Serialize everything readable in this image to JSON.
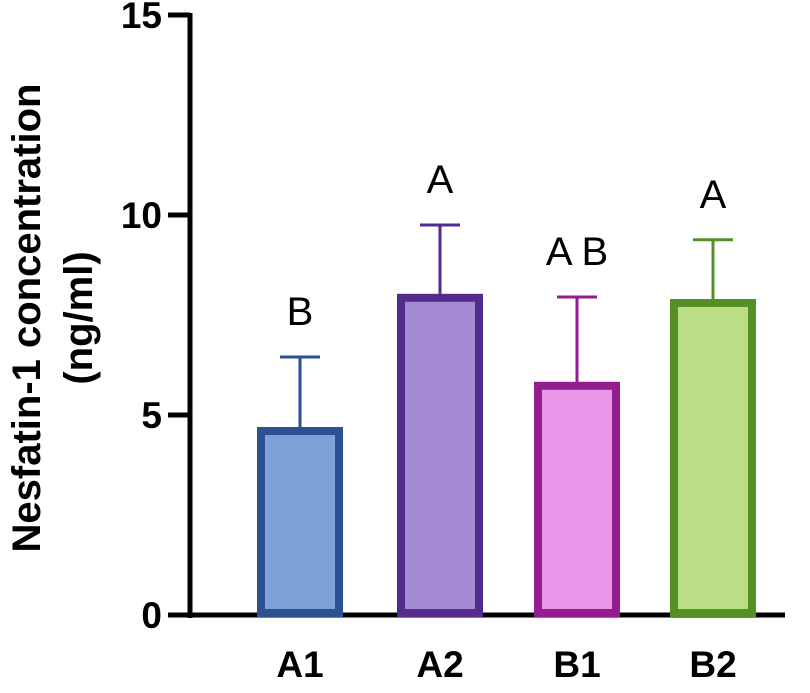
{
  "chart_data": {
    "type": "bar",
    "title": "",
    "xlabel": "",
    "ylabel": "Nesfatin-1 concentration\n(ng/ml)",
    "ylabel_lines": [
      "Nesfatin-1 concentration",
      "(ng/ml)"
    ],
    "ylim": [
      0,
      15
    ],
    "yticks": [
      0,
      5,
      10,
      15
    ],
    "grid": false,
    "categories": [
      "A1",
      "A2",
      "B1",
      "B2"
    ],
    "values": [
      4.6,
      7.93,
      5.73,
      7.8
    ],
    "error_upper": [
      6.45,
      9.75,
      7.95,
      9.38
    ],
    "significance_labels": [
      "B",
      "A",
      "A B",
      "A"
    ],
    "fill_colors": [
      "#7ba1d6",
      "#a58ad4",
      "#e996e8",
      "#bbdd85"
    ],
    "edge_colors": [
      "#2b5193",
      "#512c8c",
      "#931c8f",
      "#559026"
    ]
  }
}
